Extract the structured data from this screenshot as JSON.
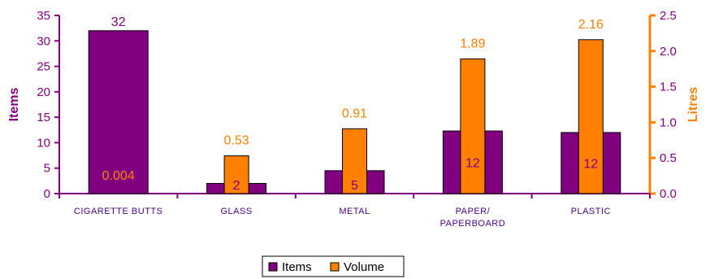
{
  "chart_data": {
    "type": "bar",
    "categories": [
      [
        "CIGARETTE BUTTS"
      ],
      [
        "GLASS"
      ],
      [
        "METAL"
      ],
      [
        "PAPER/",
        "PAPERBOARD"
      ],
      [
        "PLASTIC"
      ]
    ],
    "series": [
      {
        "name": "Items",
        "axis": "left",
        "color": "#800080",
        "values": [
          32,
          2,
          4.5,
          12.3,
          12
        ],
        "labels": [
          "32",
          "2",
          "5",
          "12",
          "12"
        ]
      },
      {
        "name": "Volume",
        "axis": "right",
        "color": "#ff7f00",
        "values": [
          0.004,
          0.53,
          0.91,
          1.89,
          2.16
        ],
        "labels": [
          "0.004",
          "0.53",
          "0.91",
          "1.89",
          "2.16"
        ]
      }
    ],
    "ylabel": "Items",
    "ylim": [
      0,
      35
    ],
    "yticks": [
      "0",
      "5",
      "10",
      "15",
      "20",
      "25",
      "30",
      "35"
    ],
    "y2label": "Litres",
    "y2lim": [
      0,
      2.5
    ],
    "y2ticks": [
      "0.0",
      "0.5",
      "1.0",
      "1.5",
      "2.0",
      "2.5"
    ],
    "legend": "bottom",
    "grid": false,
    "colors": {
      "items_axis": "#800080",
      "volume_axis": "#ff7f00",
      "bar_outline": "#000000"
    }
  }
}
